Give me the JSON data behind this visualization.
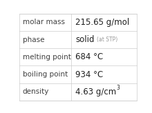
{
  "rows": [
    {
      "label": "molar mass",
      "value": "215.65 g/mol",
      "value_suffix": null,
      "superscript": null
    },
    {
      "label": "phase",
      "value": "solid",
      "value_suffix": "(at STP)",
      "superscript": null
    },
    {
      "label": "melting point",
      "value": "684 °C",
      "value_suffix": null,
      "superscript": null
    },
    {
      "label": "boiling point",
      "value": "934 °C",
      "value_suffix": null,
      "superscript": null
    },
    {
      "label": "density",
      "value": "4.63 g/cm",
      "value_suffix": null,
      "superscript": "3"
    }
  ],
  "bg_color": "#ffffff",
  "border_color": "#cccccc",
  "label_color": "#404040",
  "value_color": "#202020",
  "suffix_color": "#999999",
  "label_fontsize": 7.5,
  "value_fontsize": 8.5,
  "suffix_fontsize": 5.5,
  "super_fontsize": 5.5,
  "col_split": 0.44
}
